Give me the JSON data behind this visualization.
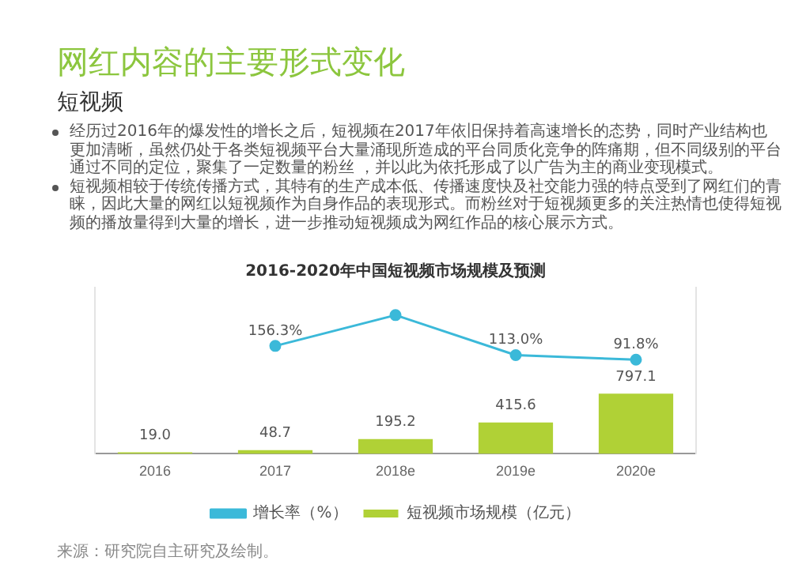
{
  "chart_data": {
    "type": "bar",
    "title": "网红内容的主要形式变化",
    "subtitle": "短视频",
    "annotations": [
      "经历过2016年的爆发性的增长之后，短视频在2017年依旧保持着高速增长的态势，同时产业结构也更加清晰，虽然仍处于各类短视频平台大量涌现所造成的平台同质化竞争的阵痛期，但不同级别的平台通过不同的定位，聚集了一定数量的粉丝 ，并以此为依托形成了以广告为主的商业变现模式。",
      "短视频相较于传统传播方式，其特有的生产成本低、传播速度快及社交能力强的特点受到了网红们的青睐，因此大量的网红以短视频作为自身作品的表现形式。而粉丝对于短视频更多的关注热情也使得短视频的播放量得到大量的增长，进一步推动短视频成为网红作品的核心展示方式。",
      "2016-2020年中国短视频市场规模及预测",
      "来源：研究院自主研究及绘制。"
    ],
    "categories": [
      "2016",
      "2017",
      "2018e",
      "2019e",
      "2020e"
    ],
    "series": [
      {
        "name": "短视频市场规模（亿元）",
        "color": "#b0d136",
        "values": [
          19.0,
          48.7,
          195.2,
          415.6,
          797.1
        ],
        "value_labels": [
          "19.0",
          "48.7",
          "195.2",
          "415.6",
          "797.1"
        ]
      },
      {
        "name": "增长率（%）",
        "type": "line",
        "axis": "y2",
        "color": "#3bb9d9",
        "values": [
          null,
          156.3,
          300.8,
          113.0,
          91.8
        ],
        "value_labels": [
          null,
          "156.3%",
          null,
          "113.0%",
          "91.8%"
        ]
      }
    ],
    "ylim": [
      0,
      2200
    ],
    "y2lim": [
      -350,
      430
    ],
    "tick_labels": "x",
    "grid": false,
    "legend": "bottom",
    "marker": "circle",
    "line_style": "solid"
  }
}
